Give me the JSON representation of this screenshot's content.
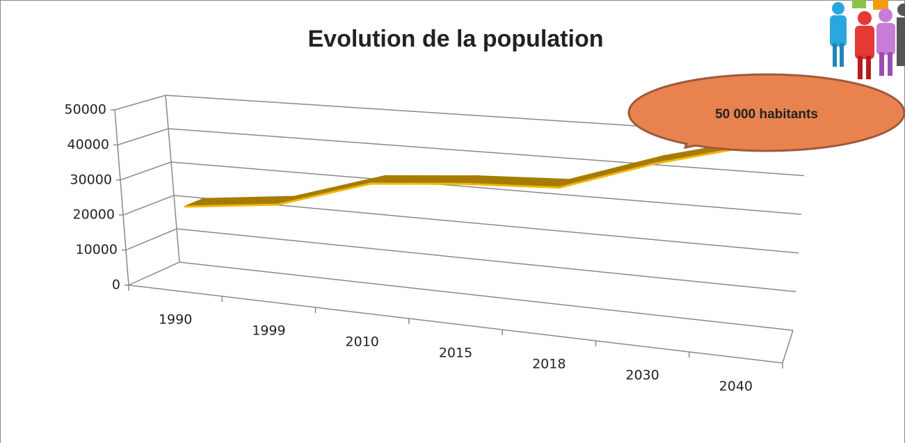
{
  "chart_data": {
    "type": "line3d",
    "title": "Evolution de la population",
    "categories": [
      "1990",
      "1999",
      "2010",
      "2015",
      "2018",
      "2030",
      "2040"
    ],
    "values": [
      22000,
      25000,
      33000,
      35000,
      36000,
      44000,
      50000
    ],
    "color": "#a67c00",
    "ylim": [
      0,
      50000
    ],
    "yticks": [
      0,
      10000,
      20000,
      30000,
      40000,
      50000
    ],
    "grid": true,
    "annotation": "50 000 habitants"
  }
}
